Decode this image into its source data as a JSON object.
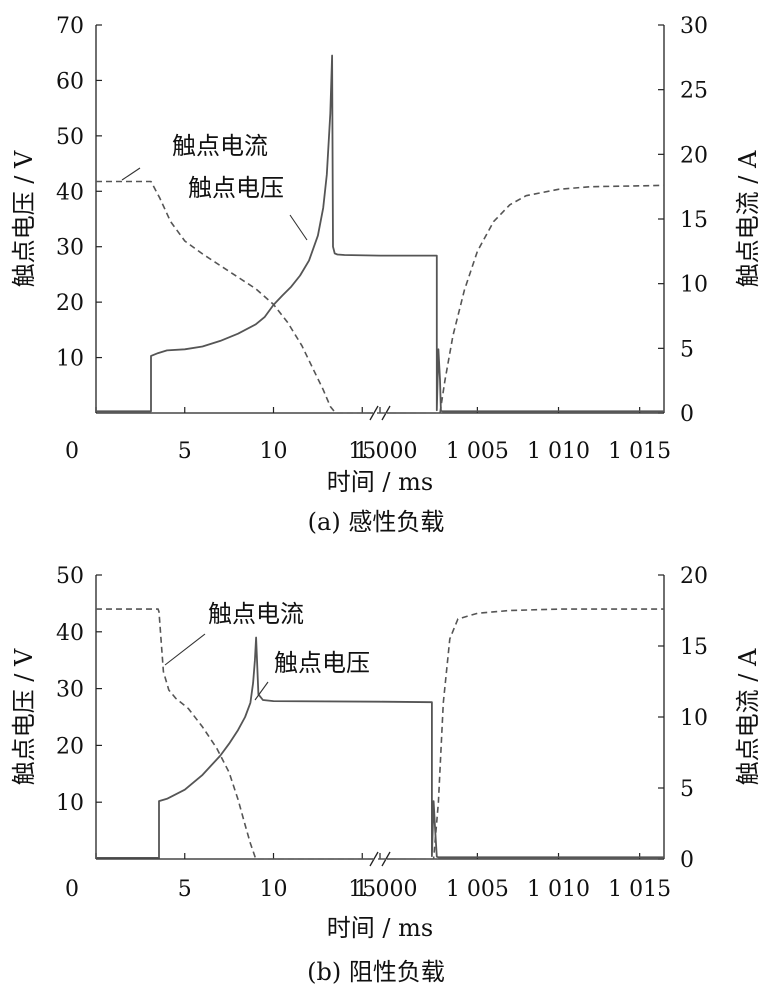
{
  "chart_data": [
    {
      "type": "line",
      "caption": "(a)  感性负载",
      "xlabel": "时间 / ms",
      "ylabel_left": "触点电压 / V",
      "ylabel_right": "触点电流 / A",
      "ylim_left": [
        0,
        70
      ],
      "ylim_right": [
        0,
        30
      ],
      "yticks_left": [
        "10",
        "20",
        "30",
        "40",
        "50",
        "60",
        "70"
      ],
      "yticks_right": [
        "0",
        "5",
        "10",
        "15",
        "20",
        "25",
        "30"
      ],
      "x_segments": [
        {
          "range": [
            0,
            16
          ],
          "ticks": [
            [
              "0",
              0
            ],
            [
              "5",
              5
            ],
            [
              "10",
              10
            ],
            [
              "15",
              15
            ]
          ]
        },
        {
          "range": [
            999,
            1016.5
          ],
          "ticks": [
            [
              "1 000",
              999
            ],
            [
              "1 005",
              1005
            ],
            [
              "1 010",
              1010
            ],
            [
              "1 015",
              1015
            ]
          ]
        }
      ],
      "axis_break": true,
      "annotations": [
        {
          "text": "触点电流",
          "series": "current",
          "x": 3.3,
          "y_axis": "right",
          "y": 17.9
        },
        {
          "text": "触点电压",
          "series": "voltage",
          "x": 11.5,
          "y_axis": "left",
          "y": 31
        }
      ],
      "series": [
        {
          "id": "voltage",
          "axis": "left",
          "style": "solid",
          "x": [
            0,
            3.0,
            3.1,
            3.1,
            3.5,
            4.0,
            5,
            6,
            7,
            8,
            9,
            9.5,
            10,
            10.5,
            11,
            11.5,
            12,
            12.5,
            12.8,
            13.0,
            13.2,
            13.3,
            13.35,
            13.45,
            13.6,
            14,
            16,
            999,
            1002.5,
            1002.5,
            1002.6,
            1002.7,
            1002.75,
            1002.85,
            1016.5
          ],
          "y": [
            0.3,
            0.3,
            0.3,
            10.3,
            10.8,
            11.3,
            11.5,
            12.0,
            13.0,
            14.3,
            16.0,
            17.3,
            19.5,
            21.2,
            22.8,
            24.8,
            27.5,
            32,
            37,
            43,
            54,
            64.5,
            30,
            28.8,
            28.6,
            28.5,
            28.4,
            28.4,
            28.4,
            0.5,
            11.5,
            6.0,
            0.4,
            0.3,
            0.3
          ]
        },
        {
          "id": "current",
          "axis": "right",
          "style": "dashed",
          "x": [
            0,
            1.8,
            3.1,
            3.6,
            4.2,
            5,
            6,
            7,
            8,
            9,
            10,
            10.8,
            11.6,
            12.2,
            12.8,
            13.2,
            13.5,
            16,
            999,
            1002.7,
            1003.0,
            1003.5,
            1004.2,
            1005,
            1006,
            1007,
            1008,
            1010,
            1012,
            1016.5
          ],
          "y": [
            17.9,
            17.9,
            17.9,
            16.6,
            14.8,
            13.3,
            12.3,
            11.4,
            10.5,
            9.6,
            8.4,
            7.0,
            5.2,
            3.5,
            1.8,
            0.5,
            0,
            0,
            0,
            0,
            2.5,
            6.0,
            9.5,
            12.5,
            14.8,
            16.1,
            16.8,
            17.3,
            17.5,
            17.6
          ]
        }
      ]
    },
    {
      "type": "line",
      "caption": "(b)  阻性负载",
      "xlabel": "时间 / ms",
      "ylabel_left": "触点电压 / V",
      "ylabel_right": "触点电流 / A",
      "ylim_left": [
        0,
        50
      ],
      "ylim_right": [
        0,
        20
      ],
      "yticks_left": [
        "10",
        "20",
        "30",
        "40",
        "50"
      ],
      "yticks_right": [
        "0",
        "5",
        "10",
        "15",
        "20"
      ],
      "x_segments": [
        {
          "range": [
            0,
            16
          ],
          "ticks": [
            [
              "0",
              0
            ],
            [
              "5",
              5
            ],
            [
              "10",
              10
            ],
            [
              "15",
              15
            ]
          ]
        },
        {
          "range": [
            999,
            1016.5
          ],
          "ticks": [
            [
              "1 000",
              999
            ],
            [
              "1 005",
              1005
            ],
            [
              "1 010",
              1010
            ],
            [
              "1 015",
              1015
            ]
          ]
        }
      ],
      "axis_break": true,
      "annotations": [
        {
          "text": "触点电流",
          "series": "current",
          "x": 3.7,
          "y_axis": "right",
          "y": 14.8
        },
        {
          "text": "触点电压",
          "series": "voltage",
          "x": 9.2,
          "y_axis": "left",
          "y": 28
        }
      ],
      "series": [
        {
          "id": "voltage",
          "axis": "left",
          "style": "solid",
          "x": [
            0,
            3.5,
            3.55,
            3.55,
            4,
            5,
            6,
            7,
            7.5,
            8,
            8.4,
            8.7,
            8.85,
            8.95,
            9.02,
            9.15,
            9.4,
            10,
            16,
            999,
            1002.2,
            1002.2,
            1002.3,
            1002.4,
            1002.5,
            1002.6,
            1016.5
          ],
          "y": [
            0.2,
            0.2,
            0.2,
            10.2,
            10.6,
            12.2,
            14.8,
            18.2,
            20.3,
            22.7,
            25.0,
            27.5,
            31,
            35,
            39,
            29,
            28,
            27.8,
            27.7,
            27.7,
            27.6,
            0.5,
            10.2,
            5.0,
            0.4,
            0.3,
            0.3
          ]
        },
        {
          "id": "current",
          "axis": "right",
          "style": "dashed",
          "x": [
            0,
            3.5,
            3.55,
            3.8,
            4.1,
            4.5,
            5.2,
            6,
            6.8,
            7.5,
            8.0,
            8.4,
            8.7,
            9.0,
            16,
            999,
            1002.3,
            1002.6,
            1002.9,
            1003.3,
            1003.8,
            1005,
            1007,
            1010,
            1016.5
          ],
          "y": [
            17.6,
            17.6,
            17.4,
            13.2,
            11.9,
            11.3,
            10.6,
            9.3,
            7.8,
            6.1,
            4.2,
            2.4,
            1.1,
            0,
            0,
            0,
            0,
            4.0,
            11.0,
            15.5,
            16.9,
            17.3,
            17.5,
            17.6,
            17.6
          ]
        }
      ]
    }
  ]
}
